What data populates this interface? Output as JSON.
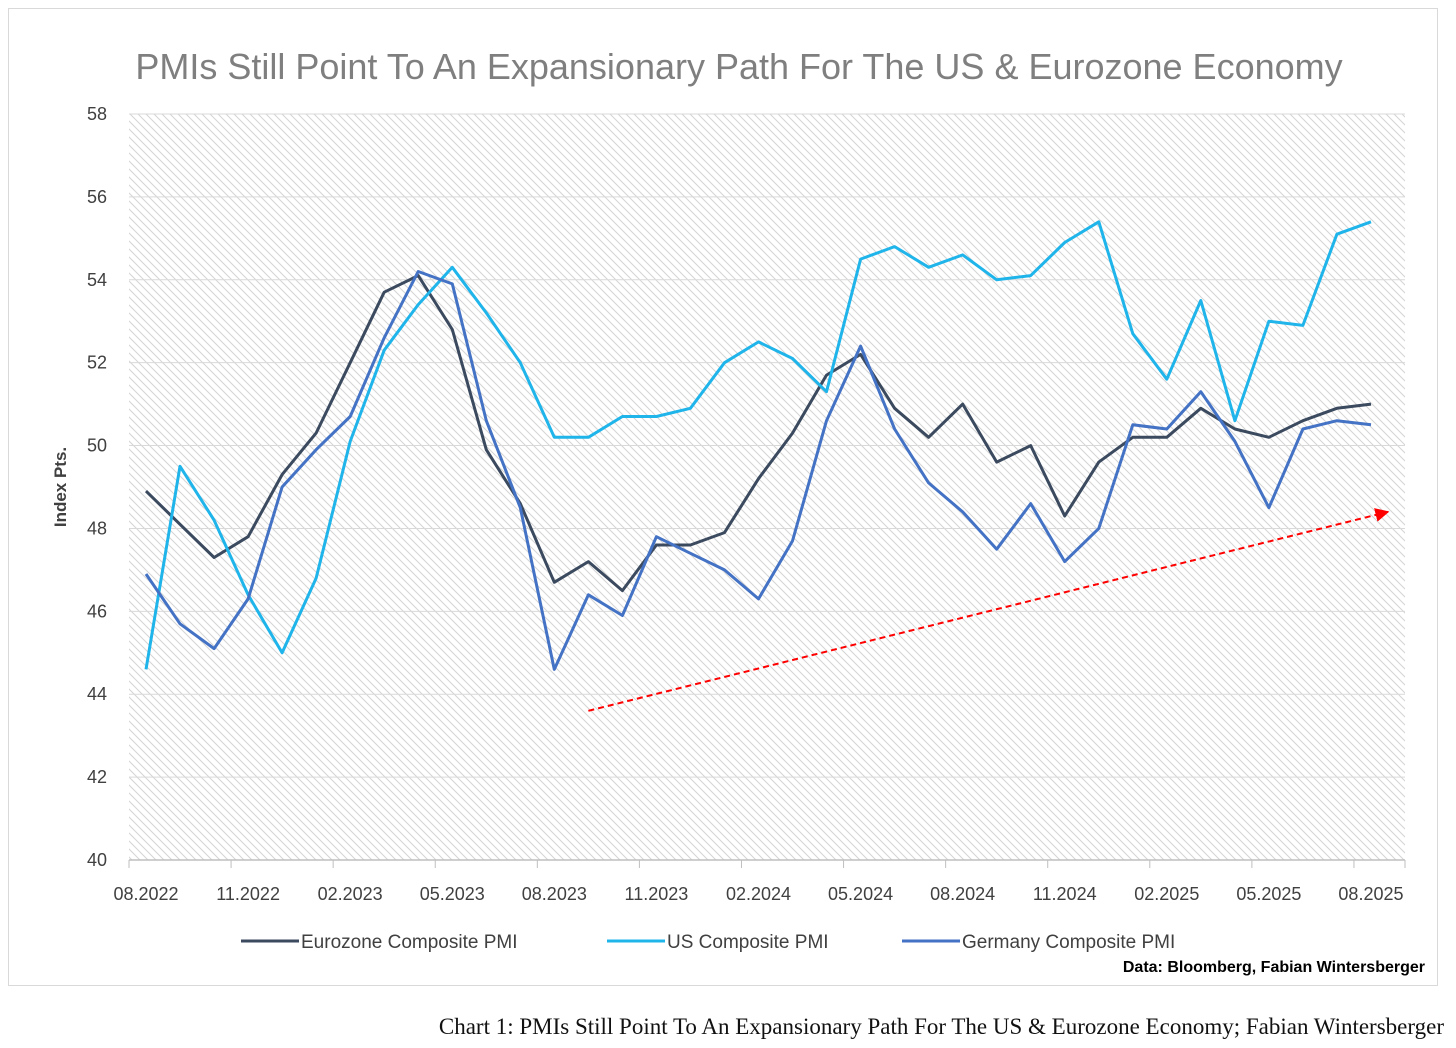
{
  "chart_data": {
    "type": "line",
    "title": "PMIs Still Point To An Expansionary Path For The US & Eurozone Economy",
    "ylabel": "Index Pts.",
    "xlabel": "",
    "ylim": [
      40,
      58
    ],
    "yticks": [
      "40",
      "42",
      "44",
      "46",
      "48",
      "50",
      "52",
      "54",
      "56",
      "58"
    ],
    "x": [
      "08.2022",
      "09.2022",
      "10.2022",
      "11.2022",
      "12.2022",
      "01.2023",
      "02.2023",
      "03.2023",
      "04.2023",
      "05.2023",
      "06.2023",
      "07.2023",
      "08.2023",
      "09.2023",
      "10.2023",
      "11.2023",
      "12.2023",
      "01.2024",
      "02.2024",
      "03.2024",
      "04.2024",
      "05.2024",
      "06.2024",
      "07.2024",
      "08.2024",
      "09.2024",
      "10.2024",
      "11.2024",
      "12.2024",
      "01.2025",
      "02.2025",
      "03.2025",
      "04.2025",
      "05.2025",
      "06.2025",
      "07.2025",
      "08.2025"
    ],
    "xtick_labels": [
      "08.2022",
      "11.2022",
      "02.2023",
      "05.2023",
      "08.2023",
      "11.2023",
      "02.2024",
      "05.2024",
      "08.2024",
      "11.2024",
      "02.2025",
      "05.2025",
      "08.2025"
    ],
    "series": [
      {
        "name": "Eurozone Composite PMI",
        "color": "#3b4a5f",
        "values": [
          48.9,
          48.1,
          47.3,
          47.8,
          49.3,
          50.3,
          52.0,
          53.7,
          54.1,
          52.8,
          49.9,
          48.6,
          46.7,
          47.2,
          46.5,
          47.6,
          47.6,
          47.9,
          49.2,
          50.3,
          51.7,
          52.2,
          50.9,
          50.2,
          51.0,
          49.6,
          50.0,
          48.3,
          49.6,
          50.2,
          50.2,
          50.9,
          50.4,
          50.2,
          50.6,
          50.9,
          51.0
        ]
      },
      {
        "name": "US Composite PMI",
        "color": "#1fb4ea",
        "values": [
          44.6,
          49.5,
          48.2,
          46.4,
          45.0,
          46.8,
          50.1,
          52.3,
          53.4,
          54.3,
          53.2,
          52.0,
          50.2,
          50.2,
          50.7,
          50.7,
          50.9,
          52.0,
          52.5,
          52.1,
          51.3,
          54.5,
          54.8,
          54.3,
          54.6,
          54.0,
          54.1,
          54.9,
          55.4,
          52.7,
          51.6,
          53.5,
          50.6,
          53.0,
          52.9,
          55.1,
          55.4
        ]
      },
      {
        "name": "Germany Composite PMI",
        "color": "#4472c4",
        "values": [
          46.9,
          45.7,
          45.1,
          46.3,
          49.0,
          49.9,
          50.7,
          52.6,
          54.2,
          53.9,
          50.6,
          48.5,
          44.6,
          46.4,
          45.9,
          47.8,
          47.4,
          47.0,
          46.3,
          47.7,
          50.6,
          52.4,
          50.4,
          49.1,
          48.4,
          47.5,
          48.6,
          47.2,
          48.0,
          50.5,
          50.4,
          51.3,
          50.1,
          48.5,
          50.4,
          50.6,
          50.5
        ]
      }
    ],
    "annotations": [
      {
        "type": "trend-arrow",
        "color": "#ff0000",
        "from": [
          "09.2023",
          43.6
        ],
        "to": [
          "08.2025",
          48.4
        ]
      }
    ],
    "grid": true,
    "legend_position": "bottom",
    "source": "Data: Bloomberg, Fabian Wintersberger"
  },
  "caption": "Chart 1: PMIs Still Point To An Expansionary Path For The US & Eurozone Economy; Fabian Wintersberger"
}
